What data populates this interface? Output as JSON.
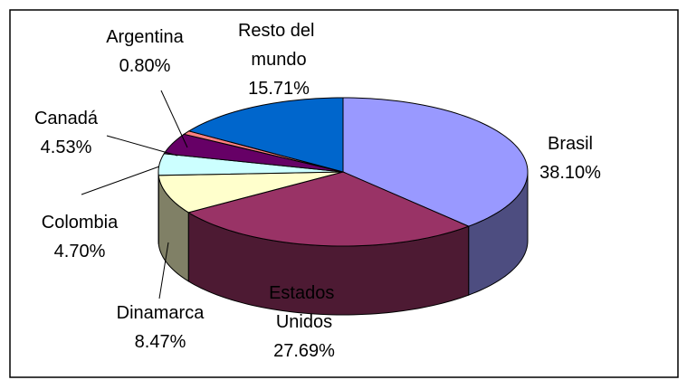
{
  "chart_data": {
    "type": "pie3d",
    "categories": [
      "Brasil",
      "Estados Unidos",
      "Dinamarca",
      "Colombia",
      "Canadá",
      "Argentina",
      "Resto del mundo"
    ],
    "values": [
      38.1,
      27.69,
      8.47,
      4.7,
      4.53,
      0.8,
      15.71
    ],
    "value_labels": [
      "38.10%",
      "27.69%",
      "8.47%",
      "4.70%",
      "4.53%",
      "0.80%",
      "15.71%"
    ],
    "colors": [
      "#9999ff",
      "#993366",
      "#ffffcc",
      "#ccffff",
      "#660066",
      "#ff8080",
      "#0066cc"
    ]
  }
}
